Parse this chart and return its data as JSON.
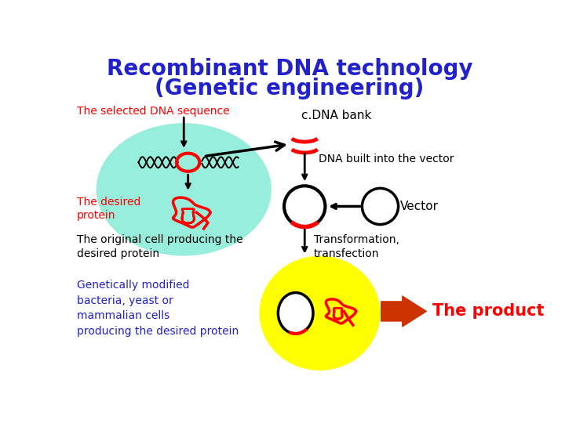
{
  "title_line1": "Recombinant DNA technology",
  "title_line2": "(Genetic engineering)",
  "title_color": "#2222cc",
  "title_fontsize": 20,
  "bg_color": "#ffffff",
  "label_selected_dna": "The selected DNA sequence",
  "label_desired_protein": "The desired\nprotein",
  "label_cdna_bank": "c.DNA bank",
  "label_dna_built": "DNA built into the vector",
  "label_vector": "Vector",
  "label_original_cell": "The original cell producing the\ndesired protein",
  "label_transformation": "Transformation,\ntransfection",
  "label_gm": "Genetically modified\nbacteria, yeast or\nmammalian cells\nproducing the desired protein",
  "label_product": "The product",
  "red": "#ff0000",
  "black": "#000000",
  "blue": "#2222cc",
  "orange_red": "#cc3300",
  "cyan_cell": "#98eedc",
  "yellow_cell": "#ffff00"
}
